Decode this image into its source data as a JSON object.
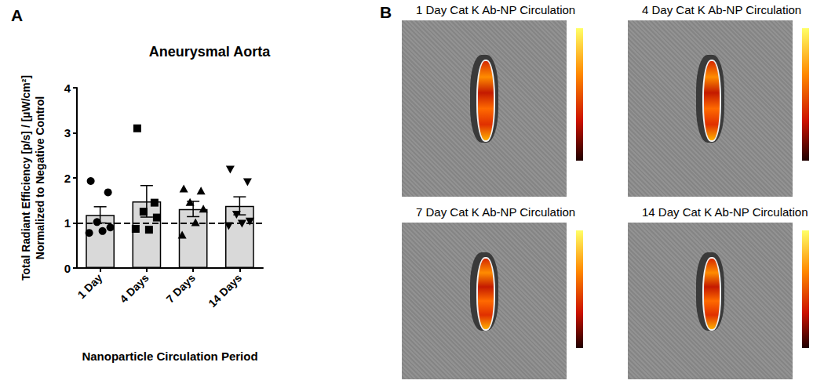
{
  "panel_labels": [
    "A",
    "B"
  ],
  "chart_data": {
    "type": "bar",
    "title": "Aneurysmal Aorta",
    "xlabel": "Nanoparticle Circulation Period",
    "ylabel": [
      "Total Radiant Efficiency [p/s] / [µW/cm²]",
      "Normalized to Negative Control"
    ],
    "categories": [
      "1 Day",
      "4 Days",
      "7 Days",
      "14 Days"
    ],
    "values": [
      1.18,
      1.48,
      1.31,
      1.38
    ],
    "error": [
      0.18,
      0.35,
      0.17,
      0.2
    ],
    "color": "#d9d9d9",
    "points": [
      {
        "marker": "circle",
        "color": "#000000",
        "values": [
          1.93,
          1.68,
          1.02,
          0.9,
          0.82,
          0.78
        ]
      },
      {
        "marker": "square",
        "color": "#000000",
        "values": [
          3.1,
          1.45,
          1.25,
          1.12,
          0.85,
          0.87
        ]
      },
      {
        "marker": "triangle",
        "color": "#000000",
        "values": [
          1.75,
          1.7,
          1.45,
          1.3,
          1.0,
          0.72
        ]
      },
      {
        "marker": "triangle-down",
        "color": "#000000",
        "values": [
          2.2,
          1.92,
          1.2,
          1.05,
          1.0,
          0.95
        ]
      }
    ],
    "reference_line": 1,
    "line_style": "dashed",
    "ylim": [
      0,
      4
    ],
    "yticks": [
      0,
      1,
      2,
      3,
      4
    ],
    "grid": false
  },
  "images": {
    "titles": [
      "1 Day Cat K Ab-NP Circulation",
      "4 Day Cat K Ab-NP Circulation",
      "7 Day Cat K Ab-NP Circulation",
      "14 Day Cat K Ab-NP Circulation"
    ]
  }
}
